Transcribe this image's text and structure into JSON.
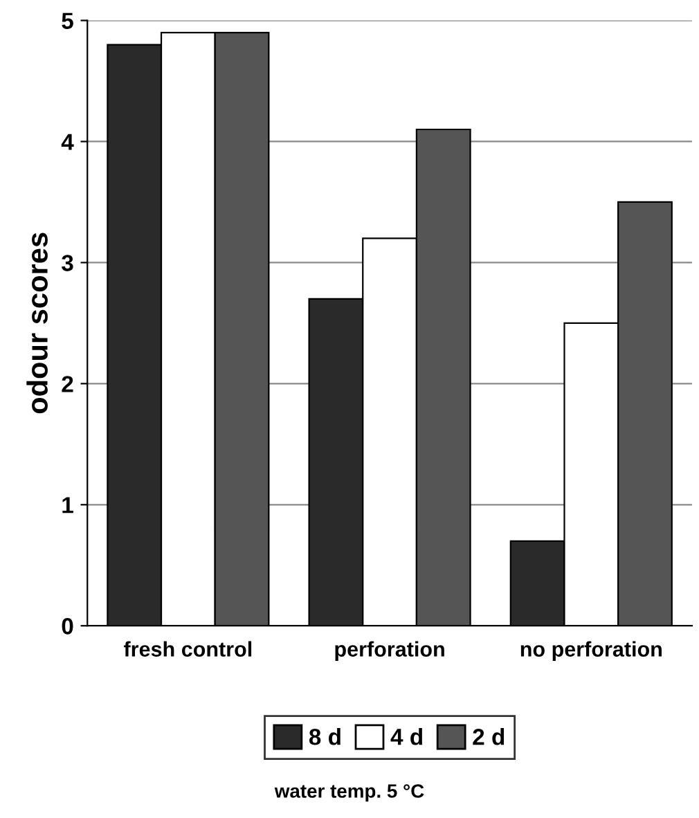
{
  "chart_data": {
    "type": "bar",
    "ylabel": "odour scores",
    "categories": [
      "fresh control",
      "perforation",
      "no perforation"
    ],
    "series": [
      {
        "name": "8 d",
        "color": "#2a2a2a",
        "values": [
          4.8,
          2.7,
          0.7
        ]
      },
      {
        "name": "4 d",
        "color": "#ffffff",
        "values": [
          4.9,
          3.2,
          2.5
        ]
      },
      {
        "name": "2 d",
        "color": "#555555",
        "values": [
          4.9,
          4.1,
          3.5
        ]
      }
    ],
    "ylim": [
      0,
      5
    ],
    "yticks": [
      0,
      1,
      2,
      3,
      4,
      5
    ],
    "grid": "y",
    "legend": "bottom",
    "annotations": [
      "water temp. 5 °C"
    ]
  }
}
